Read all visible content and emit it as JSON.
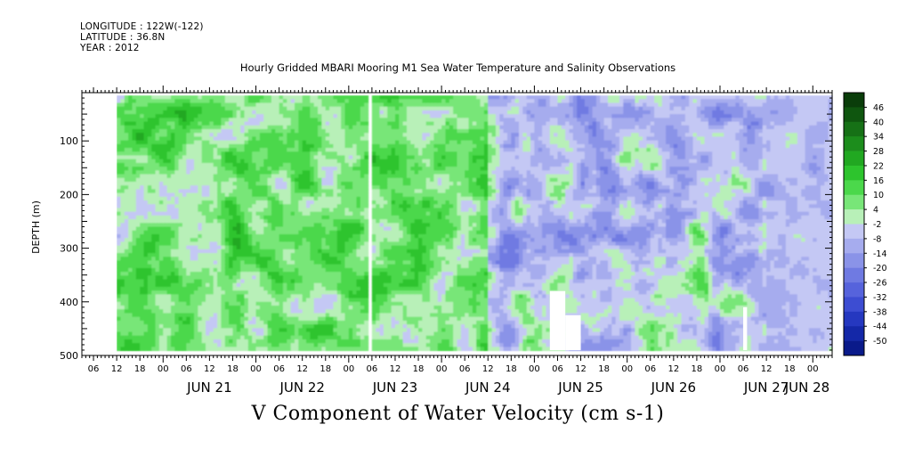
{
  "header": {
    "longitude": "LONGITUDE : 122W(-122)",
    "latitude": "LATITUDE : 36.8N",
    "year": "YEAR : 2012"
  },
  "chart_data": {
    "type": "heatmap",
    "title": "Hourly Gridded MBARI Mooring M1 Sea Water Temperature and Salinity Observations",
    "xlabel": "",
    "ylabel": "DEPTH (m)",
    "colorbar_title": "V Component of Water Velocity (cm s-1)",
    "xlim": [
      "2012-06-20T03:00",
      "2012-06-28T05:00"
    ],
    "ylim": [
      500,
      10
    ],
    "y_ticks": [
      100,
      200,
      300,
      400,
      500
    ],
    "x_hour_ticks": [
      "06",
      "12",
      "18",
      "00",
      "06",
      "12",
      "18",
      "00",
      "06",
      "12",
      "18",
      "00",
      "06",
      "12",
      "18",
      "00",
      "06",
      "12",
      "18",
      "00",
      "06",
      "12",
      "18",
      "00",
      "06",
      "12",
      "18",
      "00",
      "06",
      "12",
      "18",
      "00"
    ],
    "x_day_labels": [
      "JUN 21",
      "JUN 22",
      "JUN 23",
      "JUN 24",
      "JUN 25",
      "JUN 26",
      "JUN 27",
      "JUN 28"
    ],
    "colorbar_levels": [
      46,
      40,
      34,
      28,
      22,
      16,
      10,
      4,
      -2,
      -8,
      -14,
      -20,
      -26,
      -32,
      -38,
      -44,
      -50
    ],
    "colorbar_colors": [
      "#0a3d0a",
      "#0f560f",
      "#167116",
      "#1c8d1c",
      "#21a821",
      "#2dc42d",
      "#4bd84b",
      "#78e678",
      "#b8f0b8",
      "#c4c8f4",
      "#a6acee",
      "#8a93e8",
      "#6f7ae2",
      "#5663dc",
      "#3d4dd2",
      "#2538c0",
      "#1428a8",
      "#0a1a8a"
    ],
    "data_start": "2012-06-20T12:00",
    "data_gap": [
      "2012-06-23T05:00",
      "2012-06-23T06:00"
    ],
    "regimes": [
      {
        "from": "2012-06-20T12:00",
        "to": "2012-06-24T12:00",
        "v_range": [
          -10,
          25
        ]
      },
      {
        "from": "2012-06-24T12:00",
        "to": "2012-06-27T12:00",
        "v_range": [
          -26,
          15
        ]
      },
      {
        "from": "2012-06-27T12:00",
        "to": "2012-06-28T05:00",
        "v_range": [
          -20,
          0
        ]
      }
    ],
    "blanked_regions": [
      {
        "x": [
          "2012-06-25T04:00",
          "2012-06-25T08:00"
        ],
        "depth": [
          380,
          490
        ]
      },
      {
        "x": [
          "2012-06-25T08:00",
          "2012-06-25T12:00"
        ],
        "depth": [
          425,
          490
        ]
      },
      {
        "x": [
          "2012-06-27T06:00",
          "2012-06-27T07:00"
        ],
        "depth": [
          410,
          490
        ]
      }
    ]
  }
}
